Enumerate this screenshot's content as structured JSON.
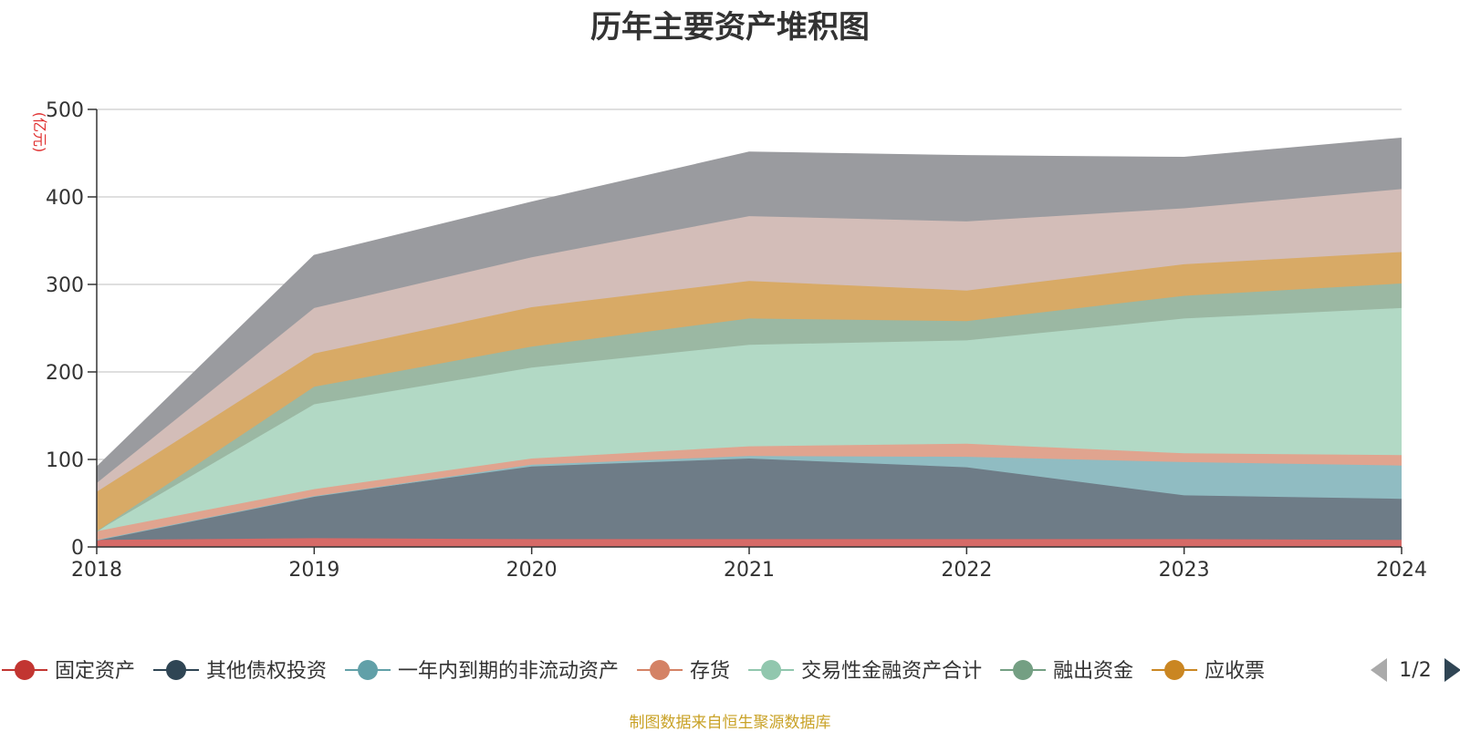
{
  "chart_data": {
    "type": "area",
    "stacked": true,
    "title": "历年主要资产堆积图",
    "unit_label": "(亿元)",
    "x": [
      "2018",
      "2019",
      "2020",
      "2021",
      "2022",
      "2023",
      "2024"
    ],
    "ylim": [
      0,
      500
    ],
    "yticks": [
      "0",
      "100",
      "200",
      "300",
      "400",
      "500"
    ],
    "grid": true,
    "series": [
      {
        "name": "固定资产",
        "color": "#c23531",
        "fill": "#d66a67",
        "values": [
          8,
          10,
          9,
          9,
          9,
          9,
          8
        ]
      },
      {
        "name": "其他债权投资",
        "color": "#2f4554",
        "fill": "#6e7c87",
        "values": [
          0,
          48,
          83,
          92,
          82,
          50,
          47
        ]
      },
      {
        "name": "一年内到期的非流动资产",
        "color": "#61a0a8",
        "fill": "#90bcc2",
        "values": [
          0,
          0,
          2,
          3,
          12,
          38,
          38
        ]
      },
      {
        "name": "存货",
        "color": "#d48265",
        "fill": "#e0a48f",
        "values": [
          10,
          8,
          7,
          11,
          15,
          10,
          12
        ]
      },
      {
        "name": "交易性金融资产合计",
        "color": "#91c7ae",
        "fill": "#b2d9c5",
        "values": [
          0,
          97,
          104,
          116,
          118,
          154,
          168
        ]
      },
      {
        "name": "融出资金",
        "color": "#749f83",
        "fill": "#9bb8a3",
        "values": [
          0,
          20,
          24,
          30,
          22,
          26,
          28
        ]
      },
      {
        "name": "应收票",
        "color": "#ca8622",
        "fill": "#d8aa66",
        "values": [
          45,
          38,
          45,
          43,
          35,
          36,
          36
        ]
      },
      {
        "name": "",
        "color": "#bda29a",
        "fill": "#d3bdb8",
        "values": [
          10,
          52,
          57,
          74,
          79,
          64,
          72
        ]
      },
      {
        "name": "",
        "color": "#6e7074",
        "fill": "#9a9b9f",
        "values": [
          18,
          60,
          63,
          73,
          75,
          58,
          58
        ]
      }
    ],
    "legend": {
      "position": "bottom",
      "visible_items": [
        "固定资产",
        "其他债权投资",
        "一年内到期的非流动资产",
        "存货",
        "交易性金融资产合计",
        "融出资金",
        "应收票"
      ],
      "page": "1/2"
    }
  },
  "source_note": "制图数据来自恒生聚源数据库"
}
